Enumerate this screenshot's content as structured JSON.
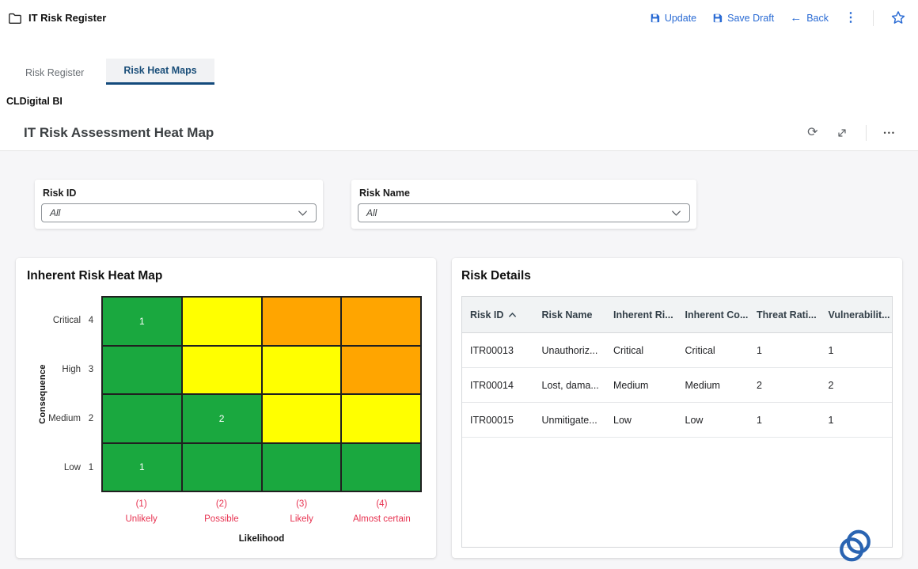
{
  "colors": {
    "accent_blue": "#2a6bd4",
    "tab_active_text": "#1a4e79",
    "tab_underline": "#134a7c",
    "axis_red": "#e73250",
    "spinner_blue": "#2a64b2",
    "heatmap_green": "#1aa83f",
    "heatmap_yellow": "#ffff00",
    "heatmap_orange": "#ffa500"
  },
  "topbar": {
    "title": "IT Risk Register",
    "update_label": "Update",
    "save_draft_label": "Save Draft",
    "back_label": "Back"
  },
  "tabs": {
    "risk_register": "Risk Register",
    "risk_heat_maps": "Risk Heat Maps"
  },
  "breadcrumb": "CLDigital BI",
  "report": {
    "title": "IT Risk Assessment Heat Map"
  },
  "filters": {
    "risk_id": {
      "label": "Risk ID",
      "value": "All"
    },
    "risk_name": {
      "label": "Risk Name",
      "value": "All"
    }
  },
  "chart_data": {
    "type": "heatmap",
    "title": "Inherent Risk Heat Map",
    "xlabel": "Likelihood",
    "ylabel": "Consequence",
    "x_categories": [
      {
        "num": "(1)",
        "label": "Unlikely"
      },
      {
        "num": "(2)",
        "label": "Possible"
      },
      {
        "num": "(3)",
        "label": "Likely"
      },
      {
        "num": "(4)",
        "label": "Almost certain"
      }
    ],
    "y_categories": [
      {
        "label": "Critical",
        "num": "4"
      },
      {
        "label": "High",
        "num": "3"
      },
      {
        "label": "Medium",
        "num": "2"
      },
      {
        "label": "Low",
        "num": "1"
      }
    ],
    "colors": {
      "green": "#1aa83f",
      "yellow": "#ffff00",
      "orange": "#ffa500"
    },
    "grid": [
      [
        {
          "color": "green",
          "count": 1
        },
        {
          "color": "yellow"
        },
        {
          "color": "orange"
        },
        {
          "color": "orange"
        }
      ],
      [
        {
          "color": "green"
        },
        {
          "color": "yellow"
        },
        {
          "color": "yellow"
        },
        {
          "color": "orange"
        }
      ],
      [
        {
          "color": "green"
        },
        {
          "color": "green",
          "count": 2
        },
        {
          "color": "yellow"
        },
        {
          "color": "yellow"
        }
      ],
      [
        {
          "color": "green",
          "count": 1
        },
        {
          "color": "green"
        },
        {
          "color": "green"
        },
        {
          "color": "green"
        }
      ]
    ]
  },
  "details_panel": {
    "title": "Risk Details",
    "sort": {
      "column": "Risk ID",
      "direction": "ascending"
    },
    "columns": [
      "Risk ID",
      "Risk Name",
      "Inherent Ri...",
      "Inherent Co...",
      "Threat Rati...",
      "Vulnerabilit..."
    ],
    "rows": [
      [
        "ITR00013",
        "Unauthoriz...",
        "Critical",
        "Critical",
        "1",
        "1"
      ],
      [
        "ITR00014",
        "Lost, dama...",
        "Medium",
        "Medium",
        "2",
        "2"
      ],
      [
        "ITR00015",
        "Unmitigate...",
        "Low",
        "Low",
        "1",
        "1"
      ]
    ]
  },
  "icons": {
    "glyphs": {
      "back": "←",
      "kebab": "⋮",
      "refresh": "⟳",
      "ellipsis": "•••"
    },
    "names": [
      "folder-icon",
      "save-icon",
      "back-arrow-icon",
      "kebab-icon",
      "star-icon",
      "refresh-icon",
      "expand-icon",
      "ellipsis-icon",
      "chevron-down-icon",
      "sort-ascending-icon",
      "spinner-icon"
    ]
  }
}
